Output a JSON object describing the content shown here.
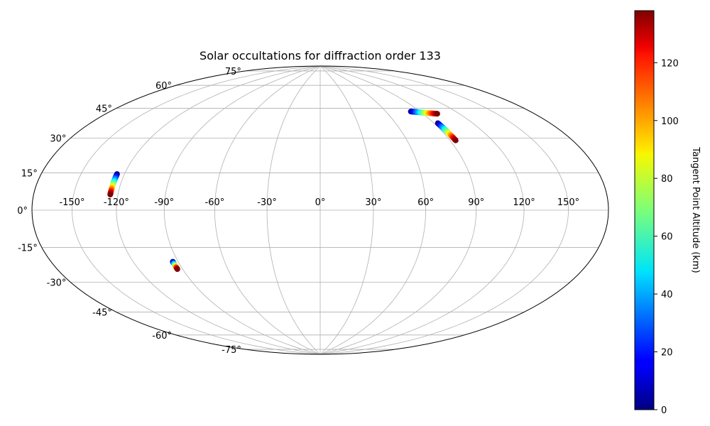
{
  "chart_data": {
    "type": "scatter",
    "projection": "hammer",
    "title": "Solar occultations for diffraction order 133",
    "grid": true,
    "lon_ticks": [
      -150,
      -120,
      -90,
      -60,
      -30,
      0,
      30,
      60,
      90,
      120,
      150
    ],
    "lat_ticks": [
      -75,
      -60,
      -45,
      -30,
      -15,
      0,
      15,
      30,
      45,
      60,
      75
    ],
    "colorbar": {
      "label": "Tangent Point Altitude (km)",
      "colormap": "jet",
      "range": [
        0,
        138
      ],
      "ticks": [
        0,
        20,
        40,
        60,
        80,
        100,
        120
      ]
    },
    "series": [
      {
        "lon_start": -125,
        "lat_start": 17.5,
        "lon_end": -125,
        "lat_end": 7.5,
        "alt_start": 0,
        "alt_end": 138,
        "n": 40
      },
      {
        "lon_start": -93.5,
        "lat_start": -27,
        "lon_end": -93.5,
        "lat_end": -31,
        "alt_start": 0,
        "alt_end": 138,
        "n": 25
      },
      {
        "lon_start": 82,
        "lat_start": 55,
        "lon_end": 102,
        "lat_end": 52,
        "alt_start": 0,
        "alt_end": 138,
        "n": 40
      },
      {
        "lon_start": 93,
        "lat_start": 47,
        "lon_end": 94,
        "lat_end": 37,
        "alt_start": 0,
        "alt_end": 138,
        "n": 40
      }
    ]
  },
  "labels": {
    "title": "Solar occultations for diffraction order 133",
    "colorbar_label": "Tangent Point Altitude (km)"
  }
}
